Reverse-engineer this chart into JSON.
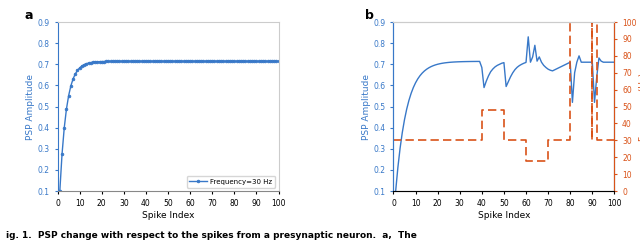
{
  "panel_a": {
    "label": "a",
    "ylabel": "PSP Amplitude",
    "xlabel": "Spike Index",
    "xlim": [
      0,
      100
    ],
    "ylim": [
      0.1,
      0.9
    ],
    "yticks": [
      0.1,
      0.2,
      0.3,
      0.4,
      0.5,
      0.6,
      0.7,
      0.8,
      0.9
    ],
    "xticks": [
      0,
      10,
      20,
      30,
      40,
      50,
      60,
      70,
      80,
      90,
      100
    ],
    "legend": "Frequency=30 Hz",
    "line_color": "#3878C8",
    "A_ss": 0.714,
    "A_0": 0.1,
    "tau": 3.0
  },
  "panel_b": {
    "label": "b",
    "ylabel": "PSP Amplitude",
    "xlabel": "Spike Index",
    "ylabel2": "Frequency (Hz)",
    "xlim": [
      0,
      100
    ],
    "ylim": [
      0.1,
      0.9
    ],
    "ylim2": [
      0,
      100
    ],
    "yticks": [
      0.1,
      0.2,
      0.3,
      0.4,
      0.5,
      0.6,
      0.7,
      0.8,
      0.9
    ],
    "yticks2": [
      0,
      10,
      20,
      30,
      40,
      50,
      60,
      70,
      80,
      90,
      100
    ],
    "xticks": [
      0,
      10,
      20,
      30,
      40,
      50,
      60,
      70,
      80,
      90,
      100
    ],
    "line_color_blue": "#3878C8",
    "line_color_orange": "#D95319"
  },
  "fig_background": "#ffffff",
  "text_color_blue": "#3878C8",
  "text_color_orange": "#D95319",
  "caption": "ig. 1.  PSP change with respect to the spikes from a presynaptic neuron.  a,  The"
}
